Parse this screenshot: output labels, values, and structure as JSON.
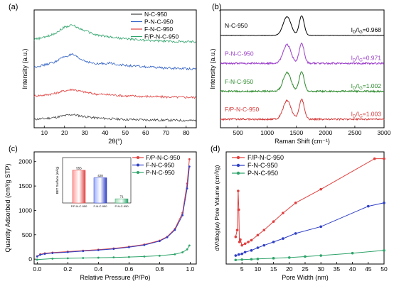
{
  "chart_data": [
    {
      "panel": "(a)",
      "type": "line",
      "xlabel": "2θ(°)",
      "ylabel": "Intensity (a.u.)",
      "xlim": [
        5,
        85
      ],
      "xticks": [
        10,
        20,
        30,
        40,
        50,
        60,
        70,
        80
      ],
      "legend_position": "top-right",
      "series": [
        {
          "name": "N-C-950",
          "color": "#404040",
          "offset": 0.0,
          "x": [
            5,
            10,
            15,
            20,
            24,
            28,
            35,
            42,
            50,
            60,
            70,
            85
          ],
          "y": [
            0.15,
            0.18,
            0.24,
            0.34,
            0.4,
            0.32,
            0.22,
            0.18,
            0.14,
            0.12,
            0.1,
            0.08
          ]
        },
        {
          "name": "F-N-C-950",
          "color": "#e0403f",
          "offset": 1.2,
          "x": [
            5,
            10,
            15,
            20,
            24,
            28,
            35,
            42,
            50,
            60,
            70,
            85
          ],
          "y": [
            0.18,
            0.22,
            0.3,
            0.45,
            0.52,
            0.42,
            0.28,
            0.24,
            0.18,
            0.15,
            0.12,
            0.1
          ]
        },
        {
          "name": "P-N-C-950",
          "color": "#2f5fc4",
          "offset": 2.6,
          "x": [
            5,
            10,
            15,
            20,
            24,
            28,
            35,
            42,
            50,
            60,
            70,
            85
          ],
          "y": [
            0.3,
            0.4,
            0.55,
            0.85,
            0.95,
            0.7,
            0.45,
            0.5,
            0.38,
            0.3,
            0.24,
            0.2
          ]
        },
        {
          "name": "F/P-N-C-950",
          "color": "#2ea36a",
          "offset": 4.0,
          "x": [
            5,
            10,
            15,
            20,
            24,
            28,
            35,
            42,
            50,
            60,
            70,
            85
          ],
          "y": [
            0.35,
            0.45,
            0.65,
            1.0,
            1.1,
            0.9,
            0.6,
            0.48,
            0.38,
            0.3,
            0.25,
            0.22
          ]
        }
      ]
    },
    {
      "panel": "(b)",
      "type": "line",
      "xlabel": "Raman Shift (cm⁻¹)",
      "ylabel": "Intensity (a.u.)",
      "xlim": [
        200,
        3000
      ],
      "xticks": [
        500,
        1000,
        1500,
        2000,
        2500,
        3000
      ],
      "series": [
        {
          "name": "N-C-950",
          "color": "#000000",
          "ratio": "=0.968",
          "offset": 3.0
        },
        {
          "name": "P-N-C-950",
          "color": "#9b3fc9",
          "ratio": "=0.971",
          "offset": 2.0
        },
        {
          "name": "F-N-C-950",
          "color": "#2c8a2c",
          "ratio": "=1.002",
          "offset": 1.0
        },
        {
          "name": "F/P-N-C-950",
          "color": "#d43a3a",
          "ratio": "=1.003",
          "offset": 0.0
        }
      ]
    },
    {
      "panel": "(c)",
      "type": "line",
      "xlabel": "Relative Pressure (P/Po)",
      "ylabel": "Quantity Adsorbed (cm³/g STP)",
      "xlim": [
        -0.02,
        1.04
      ],
      "ylim": [
        -100,
        2200
      ],
      "xticks": [
        0.0,
        0.2,
        0.4,
        0.6,
        0.8,
        1.0
      ],
      "yticks": [
        0,
        500,
        1000,
        1500,
        2000
      ],
      "legend_position": "top-right",
      "series": [
        {
          "name": "F/P-N-C-950",
          "color": "#e0403f",
          "marker": "circle",
          "x": [
            0.0,
            0.02,
            0.05,
            0.1,
            0.2,
            0.3,
            0.4,
            0.5,
            0.6,
            0.7,
            0.8,
            0.85,
            0.9,
            0.95,
            0.98,
            0.995
          ],
          "y": [
            60,
            100,
            120,
            135,
            155,
            175,
            195,
            220,
            255,
            300,
            380,
            460,
            620,
            950,
            1550,
            2050
          ]
        },
        {
          "name": "F-N-C-950",
          "color": "#2f3fc4",
          "marker": "circle",
          "x": [
            0.0,
            0.02,
            0.05,
            0.1,
            0.2,
            0.3,
            0.4,
            0.5,
            0.6,
            0.7,
            0.8,
            0.85,
            0.9,
            0.95,
            0.98,
            0.995
          ],
          "y": [
            55,
            90,
            110,
            125,
            145,
            165,
            185,
            210,
            245,
            290,
            370,
            450,
            600,
            900,
            1450,
            1900
          ]
        },
        {
          "name": "P-N-C-950",
          "color": "#2ea36a",
          "marker": "circle",
          "x": [
            0.0,
            0.1,
            0.2,
            0.3,
            0.4,
            0.5,
            0.6,
            0.7,
            0.8,
            0.9,
            0.95,
            0.98,
            0.995
          ],
          "y": [
            -10,
            10,
            18,
            24,
            30,
            36,
            44,
            54,
            70,
            100,
            140,
            200,
            280
          ]
        }
      ],
      "inset": {
        "type": "bar",
        "ylabel": "BET Surface (m²/g)",
        "categories": [
          "F/P-N-C-950",
          "F-N-C-950",
          "P-N-C-950"
        ],
        "values": [
          555,
          428,
          71
        ],
        "labels": [
          "555",
          "428",
          "71"
        ],
        "ylim": [
          0,
          650
        ]
      }
    },
    {
      "panel": "(d)",
      "type": "line",
      "xlabel": "Pore Width (nm)",
      "ylabel": "dV/dlog(w) Pore Volume (cm³/g)",
      "xlim": [
        0,
        50
      ],
      "ylim": [
        -0.1,
        3.2
      ],
      "xticks": [
        5,
        10,
        15,
        20,
        25,
        30,
        35,
        40,
        45,
        50
      ],
      "legend_position": "top-left",
      "series": [
        {
          "name": "F/P-N-C-950",
          "color": "#e0403f",
          "marker": "circle",
          "x": [
            3.0,
            3.5,
            3.8,
            4.0,
            4.2,
            4.5,
            5,
            6,
            7,
            8,
            10,
            12,
            15,
            18,
            22,
            30,
            47,
            50
          ],
          "y": [
            0.7,
            0.9,
            2.05,
            1.5,
            0.55,
            0.62,
            0.45,
            0.5,
            0.55,
            0.6,
            0.75,
            0.9,
            1.15,
            1.4,
            1.7,
            2.1,
            3.0,
            3.0
          ]
        },
        {
          "name": "F-N-C-950",
          "color": "#2f3fc4",
          "marker": "circle",
          "x": [
            3.0,
            4,
            5,
            6,
            8,
            10,
            12,
            15,
            18,
            22,
            30,
            45,
            50
          ],
          "y": [
            0.15,
            0.18,
            0.2,
            0.25,
            0.3,
            0.38,
            0.45,
            0.55,
            0.65,
            0.8,
            1.0,
            1.6,
            1.7
          ]
        },
        {
          "name": "P-N-C-950",
          "color": "#2ea36a",
          "marker": "circle",
          "x": [
            3.0,
            5,
            8,
            10,
            15,
            20,
            25,
            30,
            40,
            50
          ],
          "y": [
            0.02,
            0.03,
            0.04,
            0.05,
            0.07,
            0.09,
            0.12,
            0.15,
            0.22,
            0.3
          ]
        }
      ]
    }
  ]
}
